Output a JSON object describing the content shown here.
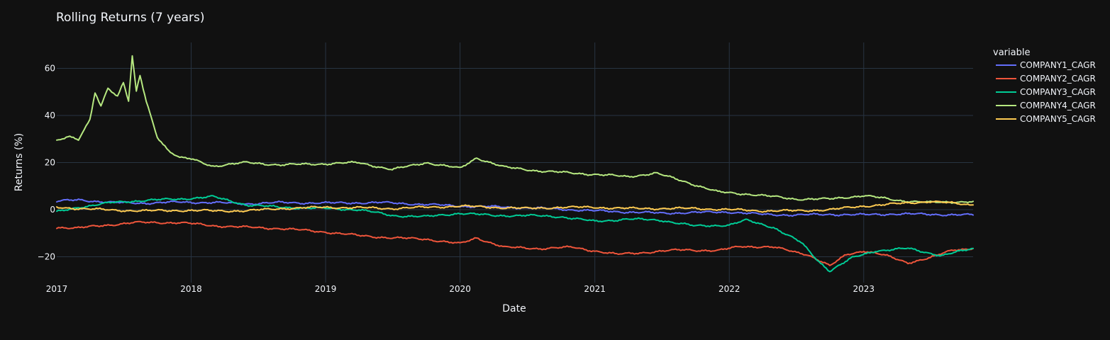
{
  "chart_data": {
    "type": "line",
    "title": "Rolling Returns (7 years)",
    "xlabel": "Date",
    "ylabel": "Returns (%)",
    "xlim": [
      "2017-01-01",
      "2023-10-25"
    ],
    "ylim": [
      -31,
      71
    ],
    "x_ticks": [
      "2017",
      "2018",
      "2019",
      "2020",
      "2021",
      "2022",
      "2023"
    ],
    "y_ticks": [
      -20,
      0,
      20,
      40,
      60
    ],
    "grid": true,
    "legend": {
      "title": "variable",
      "placement": "right"
    },
    "background": "#111111",
    "series": [
      {
        "name": "COMPANY1_CAGR",
        "color": "#636efa",
        "points": [
          [
            "2017-01-01",
            3.5
          ],
          [
            "2017-03-01",
            4.2
          ],
          [
            "2017-06-01",
            3.0
          ],
          [
            "2017-09-01",
            2.8
          ],
          [
            "2017-12-01",
            3.2
          ],
          [
            "2018-03-01",
            3.0
          ],
          [
            "2018-06-01",
            2.5
          ],
          [
            "2018-09-01",
            3.0
          ],
          [
            "2019-01-01",
            2.8
          ],
          [
            "2019-06-01",
            3.0
          ],
          [
            "2019-10-01",
            2.2
          ],
          [
            "2020-01-01",
            1.5
          ],
          [
            "2020-04-01",
            1.2
          ],
          [
            "2020-07-01",
            0.8
          ],
          [
            "2020-10-01",
            0.2
          ],
          [
            "2021-01-01",
            -0.5
          ],
          [
            "2021-04-01",
            -1.0
          ],
          [
            "2021-07-01",
            -1.5
          ],
          [
            "2021-10-01",
            -1.2
          ],
          [
            "2022-01-01",
            -1.0
          ],
          [
            "2022-04-01",
            -2.0
          ],
          [
            "2022-07-01",
            -2.3
          ],
          [
            "2022-10-01",
            -2.0
          ],
          [
            "2023-01-01",
            -2.2
          ],
          [
            "2023-04-01",
            -1.8
          ],
          [
            "2023-07-01",
            -2.0
          ],
          [
            "2023-10-25",
            -2.3
          ]
        ]
      },
      {
        "name": "COMPANY2_CAGR",
        "color": "#ef553b",
        "points": [
          [
            "2017-01-01",
            -7.5
          ],
          [
            "2017-03-01",
            -7.8
          ],
          [
            "2017-05-01",
            -6.8
          ],
          [
            "2017-08-01",
            -5.5
          ],
          [
            "2017-12-01",
            -5.5
          ],
          [
            "2018-03-01",
            -6.8
          ],
          [
            "2018-06-01",
            -7.5
          ],
          [
            "2018-09-01",
            -8.0
          ],
          [
            "2019-01-01",
            -9.5
          ],
          [
            "2019-04-01",
            -11.0
          ],
          [
            "2019-07-01",
            -12.0
          ],
          [
            "2019-10-01",
            -12.5
          ],
          [
            "2020-01-01",
            -14.5
          ],
          [
            "2020-02-15",
            -12.0
          ],
          [
            "2020-05-01",
            -16.0
          ],
          [
            "2020-08-01",
            -16.5
          ],
          [
            "2020-11-01",
            -16.0
          ],
          [
            "2021-01-01",
            -17.5
          ],
          [
            "2021-03-01",
            -19.0
          ],
          [
            "2021-06-01",
            -18.0
          ],
          [
            "2021-09-01",
            -17.0
          ],
          [
            "2021-12-01",
            -17.5
          ],
          [
            "2022-02-01",
            -15.5
          ],
          [
            "2022-05-01",
            -16.0
          ],
          [
            "2022-08-01",
            -19.0
          ],
          [
            "2022-10-01",
            -24.0
          ],
          [
            "2022-11-15",
            -19.0
          ],
          [
            "2023-01-01",
            -17.5
          ],
          [
            "2023-03-01",
            -19.5
          ],
          [
            "2023-05-01",
            -22.5
          ],
          [
            "2023-07-01",
            -20.5
          ],
          [
            "2023-09-01",
            -17.0
          ],
          [
            "2023-10-25",
            -16.5
          ]
        ]
      },
      {
        "name": "COMPANY3_CAGR",
        "color": "#00cc96",
        "points": [
          [
            "2017-01-01",
            -1.0
          ],
          [
            "2017-03-01",
            1.0
          ],
          [
            "2017-06-01",
            3.0
          ],
          [
            "2017-09-01",
            4.0
          ],
          [
            "2017-12-01",
            4.5
          ],
          [
            "2018-03-01",
            5.5
          ],
          [
            "2018-06-01",
            2.0
          ],
          [
            "2018-09-01",
            1.0
          ],
          [
            "2019-01-01",
            0.5
          ],
          [
            "2019-04-01",
            0.0
          ],
          [
            "2019-07-01",
            -2.5
          ],
          [
            "2019-10-01",
            -3.0
          ],
          [
            "2020-01-01",
            -1.5
          ],
          [
            "2020-04-01",
            -2.5
          ],
          [
            "2020-07-01",
            -2.5
          ],
          [
            "2020-10-01",
            -3.0
          ],
          [
            "2021-01-01",
            -5.0
          ],
          [
            "2021-04-01",
            -4.0
          ],
          [
            "2021-07-01",
            -4.5
          ],
          [
            "2021-10-01",
            -7.0
          ],
          [
            "2022-01-01",
            -6.5
          ],
          [
            "2022-02-15",
            -4.5
          ],
          [
            "2022-05-01",
            -7.5
          ],
          [
            "2022-07-15",
            -14.0
          ],
          [
            "2022-09-01",
            -22.0
          ],
          [
            "2022-10-01",
            -26.0
          ],
          [
            "2022-12-01",
            -20.5
          ],
          [
            "2023-02-01",
            -17.5
          ],
          [
            "2023-05-01",
            -16.5
          ],
          [
            "2023-08-01",
            -19.5
          ],
          [
            "2023-10-25",
            -16.5
          ]
        ]
      },
      {
        "name": "COMPANY4_CAGR",
        "color": "#b6e880",
        "points": [
          [
            "2017-01-01",
            29.5
          ],
          [
            "2017-02-01",
            31.0
          ],
          [
            "2017-03-01",
            29.5
          ],
          [
            "2017-04-01",
            38.0
          ],
          [
            "2017-04-15",
            50.0
          ],
          [
            "2017-05-01",
            44.0
          ],
          [
            "2017-05-20",
            52.0
          ],
          [
            "2017-06-15",
            48.0
          ],
          [
            "2017-07-01",
            54.0
          ],
          [
            "2017-07-15",
            46.0
          ],
          [
            "2017-07-25",
            65.0
          ],
          [
            "2017-08-05",
            50.0
          ],
          [
            "2017-08-15",
            57.0
          ],
          [
            "2017-09-01",
            46.0
          ],
          [
            "2017-10-01",
            31.0
          ],
          [
            "2017-11-01",
            25.0
          ],
          [
            "2017-12-01",
            22.0
          ],
          [
            "2018-01-01",
            21.5
          ],
          [
            "2018-03-01",
            18.5
          ],
          [
            "2018-06-01",
            20.0
          ],
          [
            "2018-09-01",
            19.0
          ],
          [
            "2019-01-01",
            19.5
          ],
          [
            "2019-04-01",
            20.0
          ],
          [
            "2019-07-01",
            17.0
          ],
          [
            "2019-10-01",
            20.0
          ],
          [
            "2020-01-01",
            17.5
          ],
          [
            "2020-02-15",
            22.0
          ],
          [
            "2020-05-01",
            18.0
          ],
          [
            "2020-08-01",
            16.5
          ],
          [
            "2020-11-01",
            15.5
          ],
          [
            "2021-01-01",
            15.0
          ],
          [
            "2021-04-01",
            14.0
          ],
          [
            "2021-06-15",
            15.5
          ],
          [
            "2021-09-01",
            12.0
          ],
          [
            "2021-12-01",
            7.5
          ],
          [
            "2022-03-01",
            6.5
          ],
          [
            "2022-07-01",
            4.5
          ],
          [
            "2022-10-01",
            4.5
          ],
          [
            "2023-01-01",
            6.0
          ],
          [
            "2023-04-01",
            4.0
          ],
          [
            "2023-07-01",
            3.0
          ],
          [
            "2023-10-25",
            3.5
          ]
        ]
      },
      {
        "name": "COMPANY5_CAGR",
        "color": "#fecb52",
        "points": [
          [
            "2017-01-01",
            1.0
          ],
          [
            "2017-03-01",
            0.5
          ],
          [
            "2017-06-01",
            -0.2
          ],
          [
            "2017-09-01",
            -0.5
          ],
          [
            "2017-12-01",
            -0.3
          ],
          [
            "2018-03-01",
            -0.5
          ],
          [
            "2018-06-01",
            -0.5
          ],
          [
            "2018-09-01",
            0.5
          ],
          [
            "2019-01-01",
            1.0
          ],
          [
            "2019-04-01",
            0.8
          ],
          [
            "2019-07-01",
            0.5
          ],
          [
            "2019-10-01",
            1.0
          ],
          [
            "2020-01-01",
            1.5
          ],
          [
            "2020-04-01",
            1.0
          ],
          [
            "2020-07-01",
            0.5
          ],
          [
            "2020-10-01",
            1.0
          ],
          [
            "2021-01-01",
            1.0
          ],
          [
            "2021-04-01",
            0.5
          ],
          [
            "2021-07-01",
            0.5
          ],
          [
            "2021-10-01",
            0.5
          ],
          [
            "2022-01-01",
            0.0
          ],
          [
            "2022-04-01",
            -0.5
          ],
          [
            "2022-07-01",
            -0.5
          ],
          [
            "2022-10-01",
            0.0
          ],
          [
            "2023-01-01",
            1.5
          ],
          [
            "2023-04-01",
            2.5
          ],
          [
            "2023-07-01",
            3.5
          ],
          [
            "2023-10-25",
            2.0
          ]
        ]
      }
    ]
  }
}
